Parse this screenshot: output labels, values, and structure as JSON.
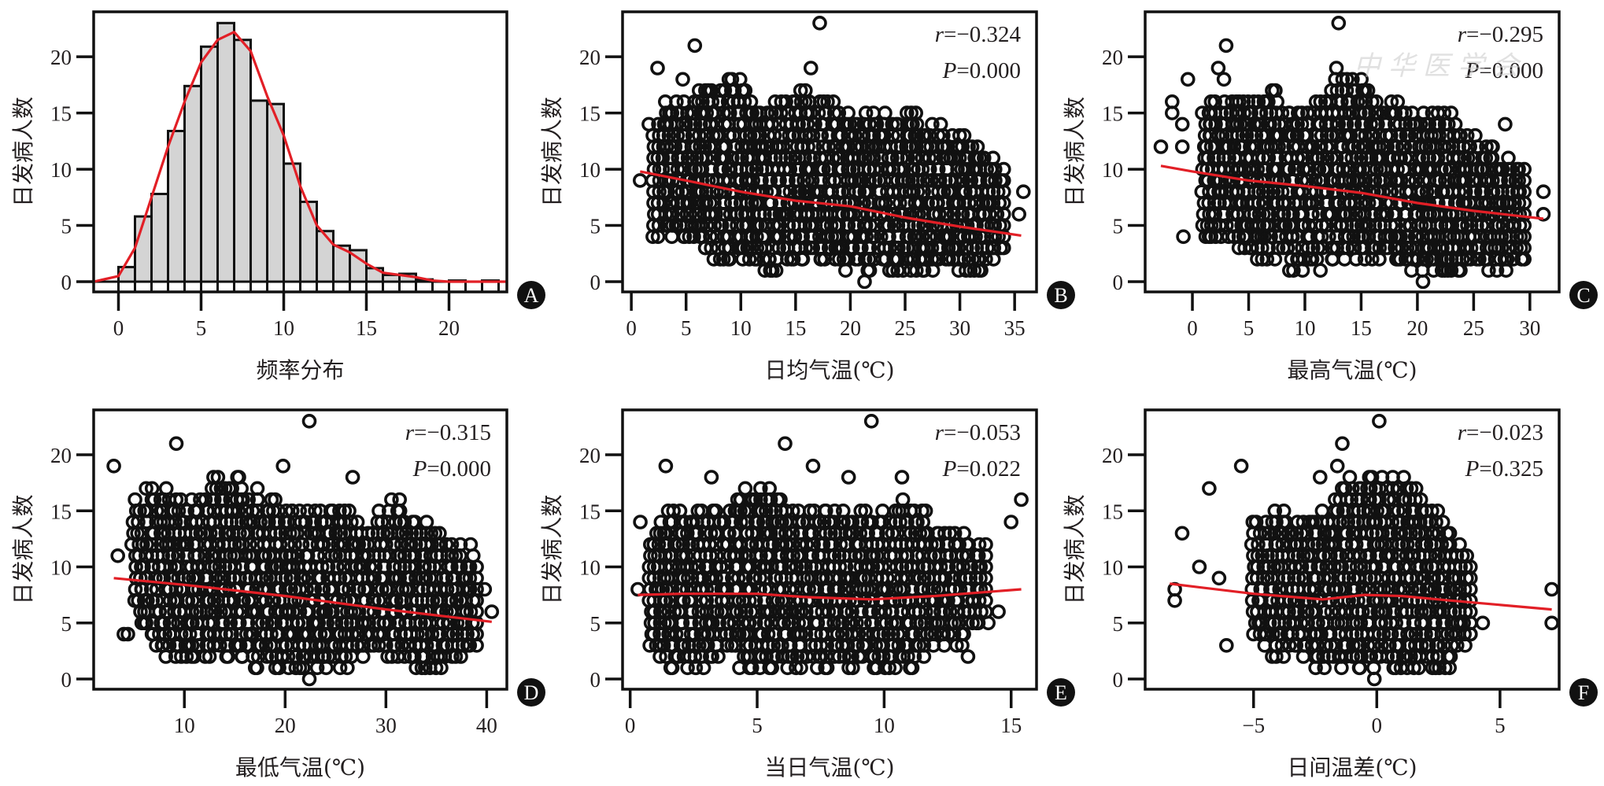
{
  "figure": {
    "watermark": "中华医学会",
    "colors": {
      "ink": "#111111",
      "fit_line": "#e21f26",
      "bar_fill": "#d4d4d4",
      "label_bg": "#111111"
    }
  },
  "chart_data": [
    {
      "panel": "A",
      "type": "bar",
      "subtype": "histogram",
      "xlabel": "频率分布",
      "ylabel": "日发病人数",
      "xlim": [
        -1.5,
        23.5
      ],
      "ylim": [
        0,
        24
      ],
      "xticks": [
        0,
        5,
        10,
        15,
        20
      ],
      "yticks": [
        0,
        5,
        10,
        15,
        20
      ],
      "bin_start": 0,
      "bin_width": 1,
      "values": [
        1.3,
        5.8,
        7.8,
        13.4,
        17.4,
        20.9,
        23.0,
        21.5,
        16.1,
        15.8,
        10.5,
        7.1,
        4.5,
        3.2,
        2.8,
        1.2,
        0.6,
        0.7,
        0.2,
        0,
        0.1,
        0,
        0.1
      ],
      "density_curve": [
        [
          -1.5,
          0
        ],
        [
          0,
          0.5
        ],
        [
          1,
          3
        ],
        [
          2,
          7.5
        ],
        [
          3,
          12
        ],
        [
          4,
          16
        ],
        [
          5,
          19.5
        ],
        [
          6,
          21.5
        ],
        [
          7,
          22.2
        ],
        [
          8,
          20.5
        ],
        [
          9,
          16.5
        ],
        [
          10,
          13
        ],
        [
          11,
          8.5
        ],
        [
          12,
          5
        ],
        [
          13,
          3.3
        ],
        [
          14,
          2.6
        ],
        [
          15,
          1.6
        ],
        [
          16,
          0.8
        ],
        [
          17,
          0.6
        ],
        [
          18,
          0.4
        ],
        [
          19,
          0.1
        ],
        [
          20,
          0
        ],
        [
          23.5,
          0
        ]
      ],
      "grid": false
    },
    {
      "panel": "B",
      "type": "scatter",
      "xlabel": "日均气温(℃)",
      "ylabel": "日发病人数",
      "xlim": [
        -0.8,
        37
      ],
      "ylim": [
        0,
        24
      ],
      "xticks": [
        0,
        5,
        10,
        15,
        20,
        25,
        30,
        35
      ],
      "yticks": [
        0,
        5,
        10,
        15,
        20
      ],
      "stat_r": "=−0.324",
      "stat_p": "=0.000",
      "cloud": [
        [
          2,
          4,
          13
        ],
        [
          3,
          4,
          16
        ],
        [
          5,
          4,
          16
        ],
        [
          7,
          2,
          17
        ],
        [
          10,
          2,
          18
        ],
        [
          12,
          1,
          15
        ],
        [
          15,
          2,
          17
        ],
        [
          17,
          2,
          16
        ],
        [
          20,
          1,
          15
        ],
        [
          22,
          1,
          15
        ],
        [
          25,
          1,
          15
        ],
        [
          27,
          1,
          14
        ],
        [
          30,
          1,
          13
        ],
        [
          32,
          1,
          12
        ],
        [
          34,
          3,
          10
        ]
      ],
      "outliers": [
        [
          0.8,
          9
        ],
        [
          1.6,
          14
        ],
        [
          2.4,
          19
        ],
        [
          5.8,
          21
        ],
        [
          17.2,
          23
        ],
        [
          21.3,
          0
        ],
        [
          35.8,
          8
        ],
        [
          35.4,
          6
        ],
        [
          4.7,
          18
        ],
        [
          16.4,
          19
        ]
      ],
      "loess": [
        [
          0.8,
          9.8
        ],
        [
          5,
          9
        ],
        [
          10,
          8
        ],
        [
          15,
          7.2
        ],
        [
          20,
          6.7
        ],
        [
          25,
          5.7
        ],
        [
          30,
          4.9
        ],
        [
          35.6,
          4.1
        ]
      ],
      "grid": false
    },
    {
      "panel": "C",
      "type": "scatter",
      "xlabel": "最高气温(℃)",
      "ylabel": "日发病人数",
      "xlim": [
        -4.2,
        32.6
      ],
      "ylim": [
        0,
        24
      ],
      "xticks": [
        0,
        5,
        10,
        15,
        20,
        25,
        30
      ],
      "yticks": [
        0,
        5,
        10,
        15,
        20
      ],
      "stat_r": "=−0.295",
      "stat_p": "=0.000",
      "cloud": [
        [
          1,
          4,
          16
        ],
        [
          3,
          4,
          16
        ],
        [
          5,
          2,
          16
        ],
        [
          7,
          2,
          17
        ],
        [
          10,
          1,
          15
        ],
        [
          13,
          2,
          18
        ],
        [
          15,
          2,
          18
        ],
        [
          17,
          2,
          16
        ],
        [
          20,
          1,
          15
        ],
        [
          22,
          1,
          15
        ],
        [
          24,
          1,
          14
        ],
        [
          26,
          1,
          12
        ],
        [
          28,
          1,
          11
        ],
        [
          29.5,
          2,
          10
        ]
      ],
      "outliers": [
        [
          -2.8,
          12
        ],
        [
          -1.8,
          16
        ],
        [
          -1.8,
          15
        ],
        [
          -0.9,
          14
        ],
        [
          -0.9,
          12
        ],
        [
          -0.8,
          4
        ],
        [
          -0.4,
          18
        ],
        [
          2.3,
          19
        ],
        [
          2.8,
          18
        ],
        [
          3,
          21
        ],
        [
          12.8,
          19
        ],
        [
          13,
          23
        ],
        [
          20.5,
          0
        ],
        [
          27.8,
          14
        ],
        [
          31.2,
          8
        ],
        [
          31.2,
          6
        ]
      ],
      "loess": [
        [
          -2.8,
          10.3
        ],
        [
          0,
          9.8
        ],
        [
          5,
          9
        ],
        [
          10,
          8.5
        ],
        [
          15,
          7.9
        ],
        [
          20,
          7
        ],
        [
          25,
          6.3
        ],
        [
          31.2,
          5.6
        ]
      ],
      "grid": false
    },
    {
      "panel": "D",
      "type": "scatter",
      "xlabel": "最低气温(℃)",
      "ylabel": "日发病人数",
      "xlim": [
        1.0,
        42.0
      ],
      "ylim": [
        0,
        24
      ],
      "xticks": [
        10,
        20,
        30,
        40
      ],
      "yticks": [
        0,
        5,
        10,
        15,
        20
      ],
      "stat_r": "=−0.315",
      "stat_p": "=0.000",
      "cloud": [
        [
          5,
          6,
          16
        ],
        [
          8,
          2,
          17
        ],
        [
          10,
          2,
          15
        ],
        [
          13,
          2,
          18
        ],
        [
          15,
          2,
          18
        ],
        [
          18,
          1,
          16
        ],
        [
          20,
          1,
          15
        ],
        [
          23,
          1,
          15
        ],
        [
          26,
          1,
          15
        ],
        [
          28,
          2,
          14
        ],
        [
          31,
          2,
          16
        ],
        [
          33,
          1,
          14
        ],
        [
          35,
          1,
          14
        ],
        [
          37,
          1,
          12
        ],
        [
          39,
          3,
          10
        ]
      ],
      "outliers": [
        [
          3,
          19
        ],
        [
          3.4,
          11
        ],
        [
          4,
          4
        ],
        [
          4.4,
          4
        ],
        [
          9.2,
          21
        ],
        [
          19.8,
          19
        ],
        [
          22.4,
          23
        ],
        [
          22.4,
          0
        ],
        [
          26.7,
          18
        ],
        [
          38.4,
          12
        ],
        [
          39.8,
          8
        ],
        [
          40.5,
          6
        ]
      ],
      "loess": [
        [
          3,
          9
        ],
        [
          10,
          8.4
        ],
        [
          20,
          7.4
        ],
        [
          30,
          6.2
        ],
        [
          40.5,
          5.1
        ]
      ],
      "grid": false
    },
    {
      "panel": "E",
      "type": "scatter",
      "xlabel": "当日气温(℃)",
      "ylabel": "日发病人数",
      "xlim": [
        -0.3,
        16.0
      ],
      "ylim": [
        0,
        24
      ],
      "xticks": [
        0,
        5,
        10,
        15
      ],
      "yticks": [
        0,
        5,
        10,
        15,
        20
      ],
      "stat_r": "=−0.053",
      "stat_p": "=0.022",
      "cloud": [
        [
          0.8,
          3,
          12
        ],
        [
          1.5,
          1,
          15
        ],
        [
          2.5,
          1,
          15
        ],
        [
          3.5,
          2,
          15
        ],
        [
          5,
          1,
          17
        ],
        [
          6,
          1,
          16
        ],
        [
          7,
          1,
          15
        ],
        [
          8,
          1,
          15
        ],
        [
          9,
          1,
          15
        ],
        [
          10,
          1,
          15
        ],
        [
          11,
          1,
          16
        ],
        [
          12,
          3,
          14
        ],
        [
          13,
          3,
          13
        ],
        [
          14,
          6,
          12
        ]
      ],
      "outliers": [
        [
          0.3,
          8
        ],
        [
          0.4,
          14
        ],
        [
          1.4,
          19
        ],
        [
          3.2,
          18
        ],
        [
          6.1,
          21
        ],
        [
          7.2,
          19
        ],
        [
          9.5,
          23
        ],
        [
          8.6,
          18
        ],
        [
          10.7,
          18
        ],
        [
          15.4,
          16
        ],
        [
          15,
          14
        ],
        [
          14.5,
          6
        ],
        [
          13.3,
          2
        ],
        [
          14.1,
          5
        ]
      ],
      "loess": [
        [
          0.3,
          7.5
        ],
        [
          2,
          7.6
        ],
        [
          5,
          7.6
        ],
        [
          7,
          7.3
        ],
        [
          9.5,
          7.1
        ],
        [
          12,
          7.4
        ],
        [
          15.4,
          8
        ]
      ],
      "grid": false
    },
    {
      "panel": "F",
      "type": "scatter",
      "xlabel": "日间温差(℃)",
      "ylabel": "日发病人数",
      "xlim": [
        -9.4,
        7.4
      ],
      "ylim": [
        0,
        24
      ],
      "xticks": [
        -5,
        0,
        5
      ],
      "xtick_labels": [
        "−5",
        "0",
        "5"
      ],
      "yticks": [
        0,
        5,
        10,
        15,
        20
      ],
      "stat_r": "=−0.023",
      "stat_p": "=0.325",
      "cloud": [
        [
          -5,
          4,
          14
        ],
        [
          -4,
          2,
          15
        ],
        [
          -3,
          2,
          14
        ],
        [
          -2,
          1,
          15
        ],
        [
          -1,
          1,
          18
        ],
        [
          0,
          1,
          18
        ],
        [
          1,
          1,
          18
        ],
        [
          2,
          1,
          16
        ],
        [
          3,
          1,
          13
        ],
        [
          3.8,
          4,
          10
        ]
      ],
      "outliers": [
        [
          -8.2,
          8
        ],
        [
          -8.2,
          7
        ],
        [
          -7.9,
          13
        ],
        [
          -7.2,
          10
        ],
        [
          -6.8,
          17
        ],
        [
          -6.4,
          9
        ],
        [
          -5.5,
          19
        ],
        [
          -6.1,
          3
        ],
        [
          -2.3,
          18
        ],
        [
          -1.6,
          19
        ],
        [
          -1.4,
          21
        ],
        [
          0.1,
          23
        ],
        [
          7.1,
          8
        ],
        [
          7.1,
          5
        ],
        [
          4.3,
          5
        ],
        [
          3.8,
          4
        ],
        [
          -0.1,
          0
        ]
      ],
      "loess": [
        [
          -8.4,
          8.5
        ],
        [
          -5,
          7.6
        ],
        [
          -2.2,
          7.1
        ],
        [
          -0.5,
          7.5
        ],
        [
          1,
          7.4
        ],
        [
          3,
          7
        ],
        [
          7.1,
          6.2
        ]
      ],
      "grid": false
    }
  ]
}
